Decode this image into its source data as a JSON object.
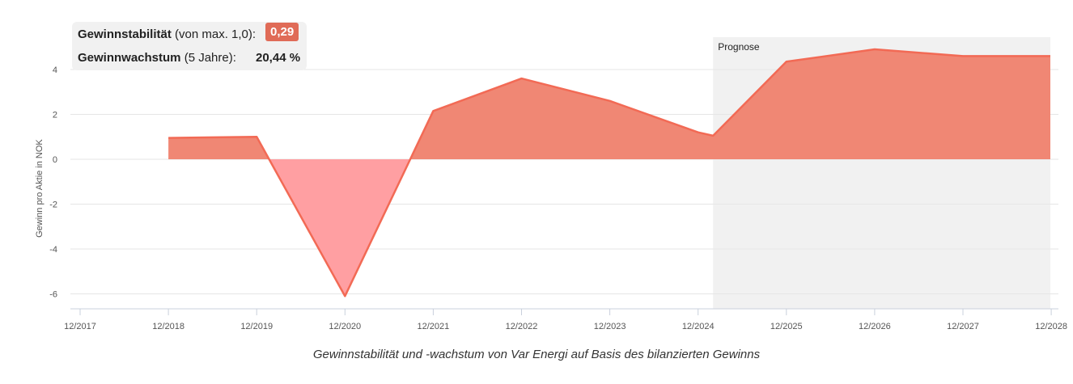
{
  "info": {
    "stability_label": "Gewinnstabilität",
    "stability_suffix": "(von max. 1,0):",
    "stability_value": "0,29",
    "growth_label": "Gewinnwachstum",
    "growth_suffix": "(5 Jahre):",
    "growth_value": "20,44 %"
  },
  "caption": "Gewinnstabilität und -wachstum von Var Energi auf Basis des bilanzierten Gewinns",
  "chart_data": {
    "type": "area",
    "ylabel": "Gewinn pro Aktie in NOK",
    "forecast_label": "Prognose",
    "x_ticks": [
      "12/2017",
      "12/2018",
      "12/2019",
      "12/2020",
      "12/2021",
      "12/2022",
      "12/2023",
      "12/2024",
      "12/2025",
      "12/2026",
      "12/2027",
      "12/2028"
    ],
    "y_ticks": [
      4,
      2,
      0,
      -2,
      -4,
      -6
    ],
    "ylim": [
      -6.7,
      5.3
    ],
    "forecast_start": 2024.17,
    "forecast_end": 2027.99,
    "grid": true,
    "series": [
      {
        "x": [
          2018,
          2019,
          2020,
          2021,
          2022,
          2023,
          2024,
          2024.17,
          2025,
          2026,
          2027,
          2027.99
        ],
        "y": [
          0.95,
          1.0,
          -6.1,
          2.15,
          3.6,
          2.6,
          1.2,
          1.05,
          4.35,
          4.9,
          4.6,
          4.6
        ]
      }
    ],
    "colors": {
      "line": "#f26a55",
      "positive_fill": "#f08774",
      "negative_fill": "#ff9fa2",
      "forecast_bg": "#f1f1f1",
      "grid": "#e6e6e6"
    }
  }
}
